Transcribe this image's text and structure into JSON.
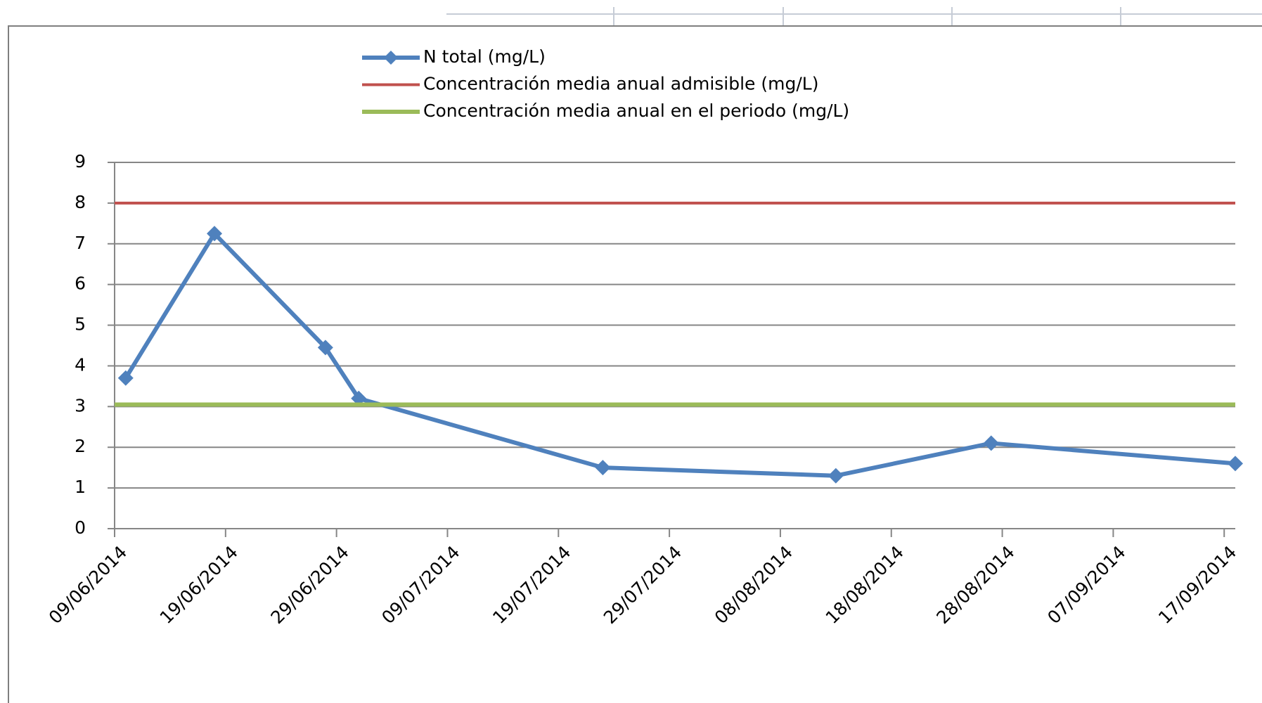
{
  "chart_data": {
    "type": "line",
    "series": [
      {
        "name": "N total (mg/L)",
        "color": "#4f81bd",
        "marker": "diamond",
        "x": [
          "10/06/2014",
          "18/06/2014",
          "28/06/2014",
          "01/07/2014",
          "23/07/2014",
          "13/08/2014",
          "27/08/2014",
          "18/09/2014"
        ],
        "values": [
          3.7,
          7.25,
          4.45,
          3.2,
          1.5,
          1.3,
          2.1,
          1.6
        ]
      },
      {
        "name": "Concentración media anual admisible (mg/L)",
        "color": "#c0504d",
        "x": [
          "09/06/2014",
          "18/09/2014"
        ],
        "values": [
          8,
          8
        ]
      },
      {
        "name": "Concentración media anual en el periodo (mg/L)",
        "color": "#9bbb59",
        "x": [
          "09/06/2014",
          "18/09/2014"
        ],
        "values": [
          3.05,
          3.05
        ]
      }
    ],
    "xlim": [
      "09/06/2014",
      "18/09/2014"
    ],
    "xticks": [
      "09/06/2014",
      "19/06/2014",
      "29/06/2014",
      "09/07/2014",
      "19/07/2014",
      "29/07/2014",
      "08/08/2014",
      "18/08/2014",
      "28/08/2014",
      "07/09/2014",
      "17/09/2014"
    ],
    "ylim": [
      0,
      9
    ],
    "yticks": [
      0,
      1,
      2,
      3,
      4,
      5,
      6,
      7,
      8,
      9
    ],
    "grid": true
  }
}
